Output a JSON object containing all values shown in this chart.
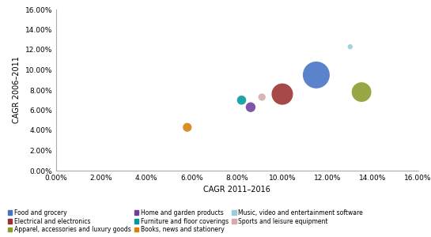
{
  "categories": [
    "Food and grocery",
    "Electrical and electronics",
    "Apparel, accessories and luxury goods",
    "Home and garden products",
    "Furniture and floor coverings",
    "Books, news and stationery",
    "Music, video and entertainment software",
    "Sports and leisure equipment"
  ],
  "x": [
    0.115,
    0.1,
    0.135,
    0.086,
    0.082,
    0.058,
    0.13,
    0.091
  ],
  "y": [
    0.095,
    0.076,
    0.078,
    0.063,
    0.07,
    0.043,
    0.123,
    0.073
  ],
  "sizes": [
    600,
    380,
    320,
    80,
    70,
    65,
    22,
    45
  ],
  "colors": [
    "#4472C4",
    "#9B3030",
    "#8B9A2A",
    "#6B3F9E",
    "#009999",
    "#D4800A",
    "#99CCDD",
    "#D4AAAA"
  ],
  "xlim": [
    0.0,
    0.16
  ],
  "ylim": [
    0.0,
    0.16
  ],
  "xticks": [
    0.0,
    0.02,
    0.04,
    0.06,
    0.08,
    0.1,
    0.12,
    0.14,
    0.16
  ],
  "yticks": [
    0.0,
    0.02,
    0.04,
    0.06,
    0.08,
    0.1,
    0.12,
    0.14,
    0.16
  ],
  "xlabel": "CAGR 2011–2016",
  "ylabel": "CAGR 2006–2011",
  "legend_order": [
    0,
    1,
    2,
    3,
    4,
    5,
    6,
    7
  ],
  "background": "#FFFFFF"
}
